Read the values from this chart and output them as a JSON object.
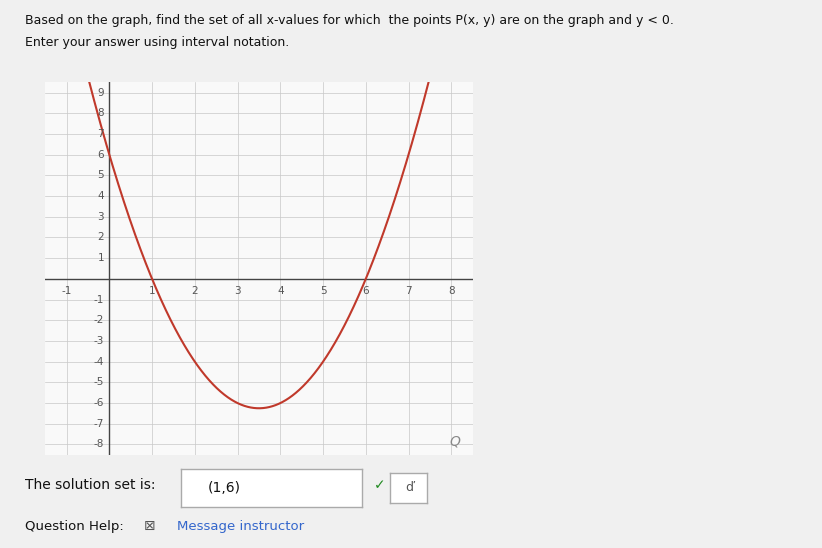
{
  "curve_color": "#c0392b",
  "curve_linewidth": 1.5,
  "xlim": [
    -1.5,
    8.5
  ],
  "ylim": [
    -8.5,
    9.5
  ],
  "xticks": [
    -1,
    1,
    2,
    3,
    4,
    5,
    6,
    7,
    8
  ],
  "yticks": [
    -8,
    -7,
    -6,
    -5,
    -4,
    -3,
    -2,
    -1,
    1,
    2,
    3,
    4,
    5,
    6,
    7,
    8,
    9
  ],
  "parabola_a": 1,
  "parabola_b": -7,
  "parabola_c": 6,
  "grid_color": "#c8c8c8",
  "grid_linewidth": 0.5,
  "axis_color": "#444444",
  "bg_color": "#f0f0f0",
  "plot_bg_color": "#f9f9f9",
  "tick_label_fontsize": 7.5,
  "fig_width": 8.22,
  "fig_height": 5.48,
  "dpi": 100,
  "title_line1": "Based on the graph, find the set of all x-values for which  the points P(x, y) are on the graph and y < 0.",
  "title_line2": "Enter your answer using interval notation.",
  "solution_label": "The solution set is:",
  "solution_text": "(1,6)",
  "question_help_label": "Question Help:",
  "message_instructor": "Message instructor"
}
